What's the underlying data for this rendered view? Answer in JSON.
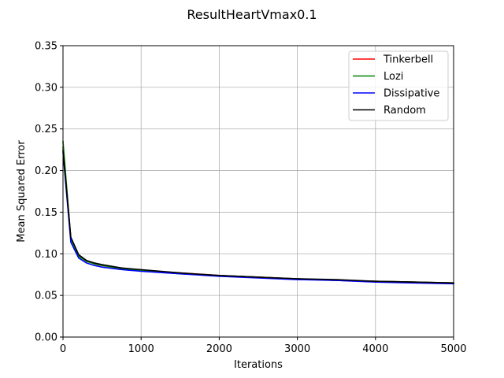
{
  "chart_data": {
    "type": "line",
    "title": "ResultHeartVmax0.1",
    "xlabel": "Iterations",
    "ylabel": "Mean Squared Error",
    "xlim": [
      0,
      5000
    ],
    "ylim": [
      0,
      0.35
    ],
    "xticks": [
      0,
      1000,
      2000,
      3000,
      4000,
      5000
    ],
    "xtick_labels": [
      "0",
      "1000",
      "2000",
      "3000",
      "4000",
      "5000"
    ],
    "yticks": [
      0,
      0.05,
      0.1,
      0.15,
      0.2,
      0.25,
      0.3,
      0.35
    ],
    "ytick_labels": [
      "0.00",
      "0.05",
      "0.10",
      "0.15",
      "0.20",
      "0.25",
      "0.30",
      "0.35"
    ],
    "grid": true,
    "legend_position": "top-right",
    "x": [
      0,
      100,
      200,
      300,
      400,
      500,
      750,
      1000,
      1500,
      2000,
      2500,
      3000,
      3500,
      4000,
      4500,
      5000
    ],
    "series": [
      {
        "name": "Tinkerbell",
        "color": "#ff0000",
        "values": [
          0.228,
          0.119,
          0.098,
          0.092,
          0.088,
          0.086,
          0.083,
          0.08,
          0.077,
          0.074,
          0.072,
          0.07,
          0.068,
          0.067,
          0.066,
          0.065
        ]
      },
      {
        "name": "Lozi",
        "color": "#008000",
        "values": [
          0.235,
          0.118,
          0.097,
          0.091,
          0.088,
          0.086,
          0.082,
          0.08,
          0.076,
          0.074,
          0.072,
          0.07,
          0.068,
          0.067,
          0.066,
          0.065
        ]
      },
      {
        "name": "Dissipative",
        "color": "#0000ff",
        "values": [
          0.222,
          0.114,
          0.095,
          0.089,
          0.086,
          0.084,
          0.081,
          0.079,
          0.076,
          0.073,
          0.071,
          0.069,
          0.068,
          0.066,
          0.065,
          0.064
        ]
      },
      {
        "name": "Random",
        "color": "#000000",
        "values": [
          0.224,
          0.12,
          0.099,
          0.092,
          0.089,
          0.087,
          0.083,
          0.081,
          0.077,
          0.074,
          0.072,
          0.07,
          0.069,
          0.067,
          0.066,
          0.065
        ]
      }
    ]
  }
}
